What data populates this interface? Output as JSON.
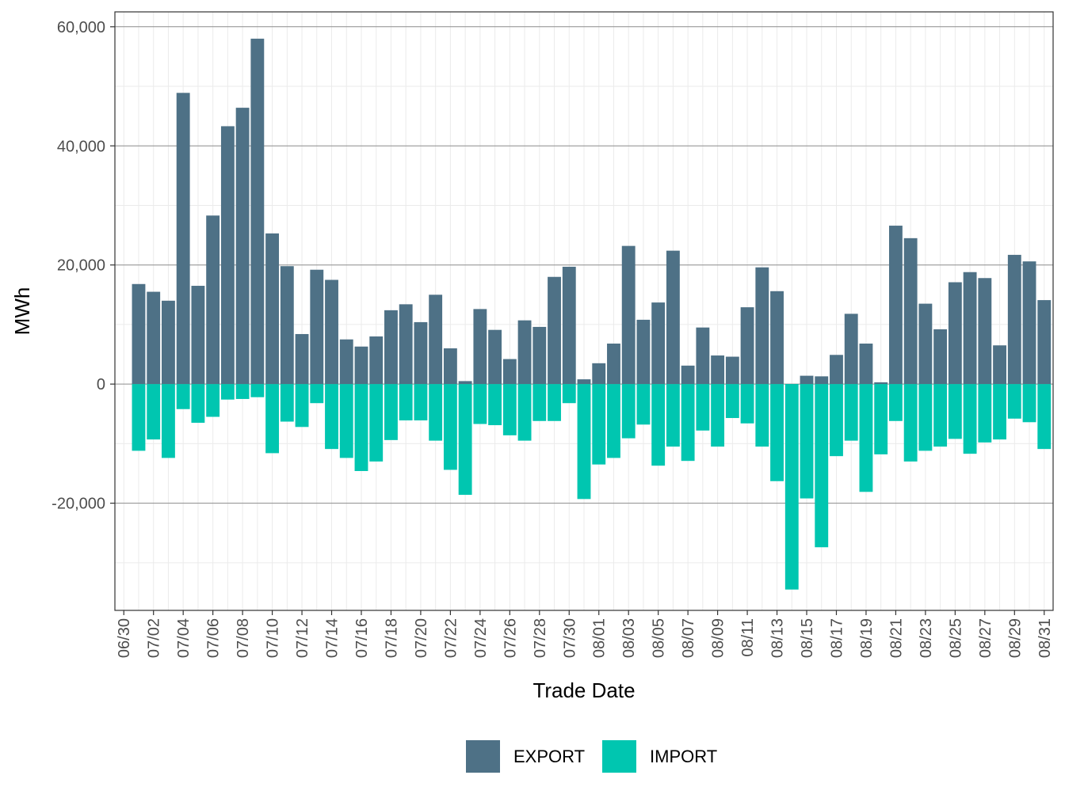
{
  "colors": {
    "export": "#4e7186",
    "import": "#00c6b0"
  },
  "chart_data": {
    "type": "bar",
    "xlabel": "Trade Date",
    "ylabel": "MWh",
    "ylim": [
      -38000,
      62500
    ],
    "y_ticks": [
      -20000,
      0,
      20000,
      40000,
      60000
    ],
    "y_tick_labels": [
      "-20,000",
      "0",
      "20,000",
      "40,000",
      "60,000"
    ],
    "x_tick_labels": [
      "06/30",
      "07/02",
      "07/04",
      "07/06",
      "07/08",
      "07/10",
      "07/12",
      "07/14",
      "07/16",
      "07/18",
      "07/20",
      "07/22",
      "07/24",
      "07/26",
      "07/28",
      "07/30",
      "08/01",
      "08/03",
      "08/05",
      "08/07",
      "08/09",
      "08/11",
      "08/13",
      "08/15",
      "08/17",
      "08/19",
      "08/21",
      "08/23",
      "08/25",
      "08/27",
      "08/29",
      "08/31"
    ],
    "grid": true,
    "legend_position": "bottom",
    "categories": [
      "07/01",
      "07/02",
      "07/03",
      "07/04",
      "07/05",
      "07/06",
      "07/07",
      "07/08",
      "07/09",
      "07/10",
      "07/11",
      "07/12",
      "07/13",
      "07/14",
      "07/15",
      "07/16",
      "07/17",
      "07/18",
      "07/19",
      "07/20",
      "07/21",
      "07/22",
      "07/23",
      "07/24",
      "07/25",
      "07/26",
      "07/27",
      "07/28",
      "07/29",
      "07/30",
      "07/31",
      "08/01",
      "08/02",
      "08/03",
      "08/04",
      "08/05",
      "08/06",
      "08/07",
      "08/08",
      "08/09",
      "08/10",
      "08/11",
      "08/12",
      "08/13",
      "08/14",
      "08/15",
      "08/16",
      "08/17",
      "08/18",
      "08/19",
      "08/20",
      "08/21",
      "08/22",
      "08/23",
      "08/24",
      "08/25",
      "08/26",
      "08/27",
      "08/28",
      "08/29",
      "08/30",
      "08/31"
    ],
    "series": [
      {
        "name": "EXPORT",
        "values": [
          16800,
          15500,
          14000,
          48900,
          16500,
          28300,
          43300,
          46400,
          58000,
          25300,
          19800,
          8400,
          19200,
          17500,
          7500,
          6300,
          8000,
          12400,
          13400,
          10400,
          15000,
          6000,
          500,
          12600,
          9100,
          4200,
          10700,
          9600,
          18000,
          19700,
          800,
          3500,
          6800,
          23200,
          10800,
          13700,
          22400,
          3100,
          9500,
          4800,
          4600,
          12900,
          19600,
          15600,
          -100,
          1400,
          1300,
          4900,
          11800,
          6800,
          300,
          26600,
          24500,
          13500,
          9200,
          17100,
          18800,
          17800,
          6500,
          21700,
          20600,
          14100
        ]
      },
      {
        "name": "IMPORT",
        "values": [
          -11200,
          -9300,
          -12400,
          -4200,
          -6500,
          -5500,
          -2600,
          -2500,
          -2200,
          -11600,
          -6300,
          -7200,
          -3200,
          -10900,
          -12400,
          -14600,
          -13000,
          -9400,
          -6100,
          -6100,
          -9500,
          -14400,
          -18600,
          -6700,
          -6900,
          -8600,
          -9500,
          -6200,
          -6200,
          -3200,
          -19300,
          -13500,
          -12400,
          -9100,
          -6800,
          -13700,
          -10500,
          -12900,
          -7800,
          -10500,
          -5700,
          -6600,
          -10500,
          -16300,
          -34500,
          -19200,
          -27400,
          -12100,
          -9500,
          -18100,
          -11800,
          -6200,
          -13000,
          -11200,
          -10500,
          -9200,
          -11700,
          -9800,
          -9300,
          -5800,
          -6400,
          -10900
        ]
      }
    ]
  }
}
